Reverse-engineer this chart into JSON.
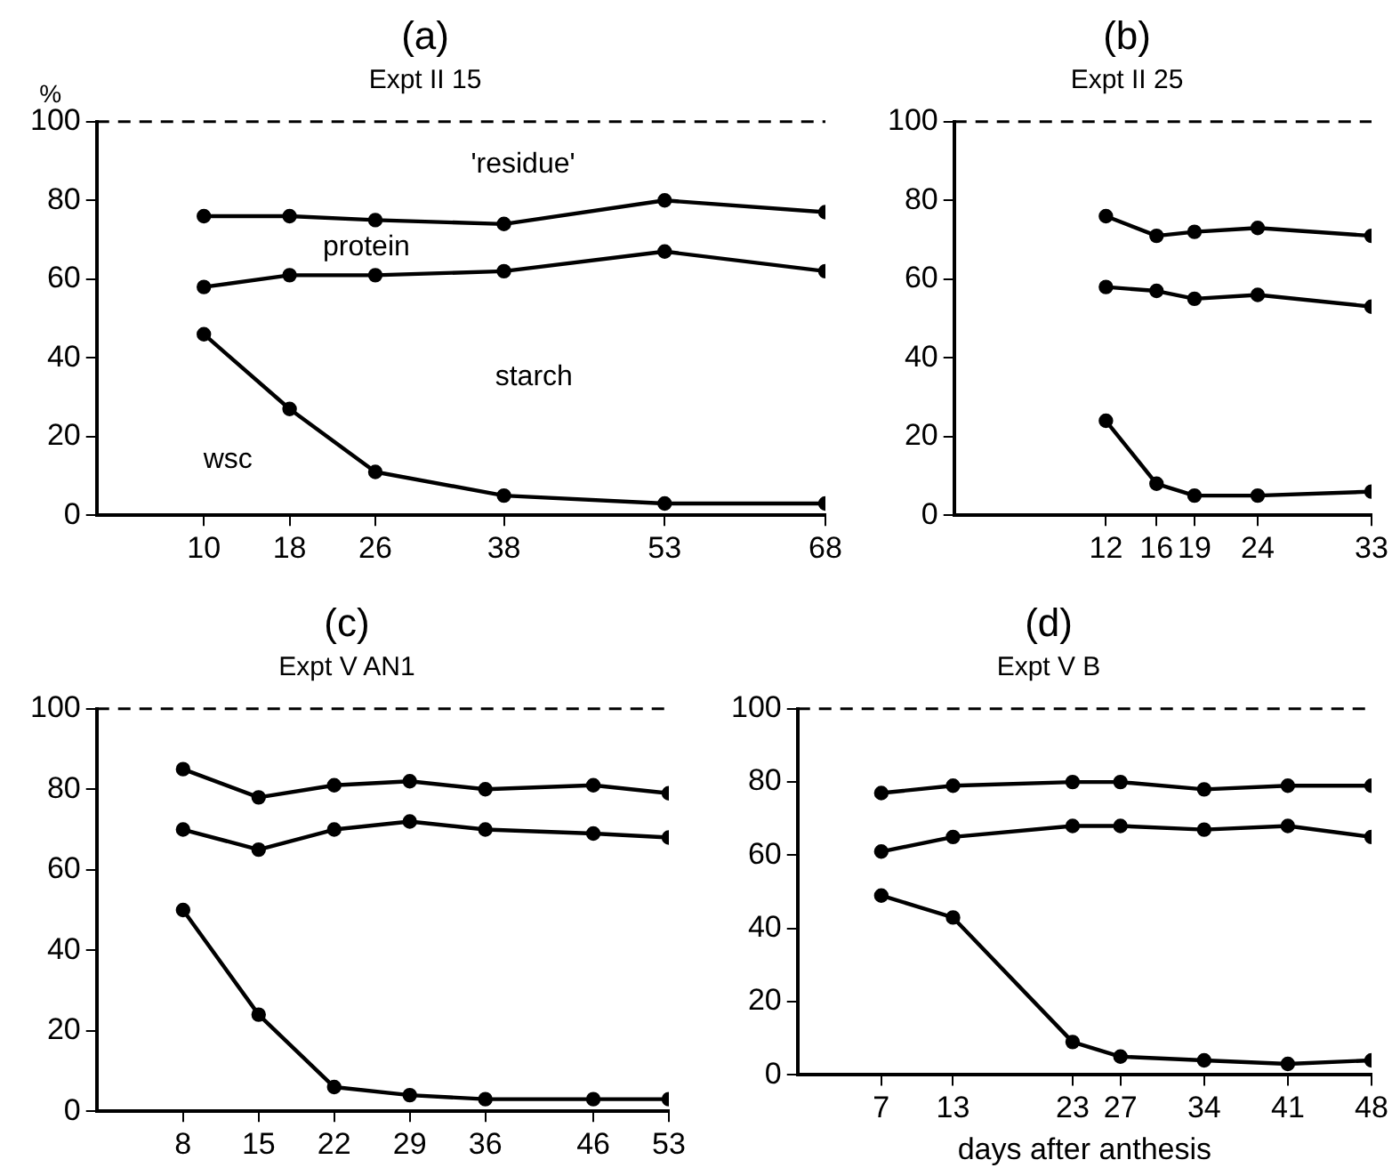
{
  "chart_data": [
    {
      "type": "line",
      "title": "(a)",
      "subtitle": "Expt II 15",
      "ylabel": "%",
      "xlim": [
        0,
        68
      ],
      "xticks": [
        10,
        18,
        26,
        38,
        53,
        68
      ],
      "ylim": [
        0,
        100
      ],
      "yticks": [
        0,
        20,
        40,
        60,
        80,
        100
      ],
      "grid": false,
      "legend": false,
      "marker": "circle",
      "line_style": "solid",
      "ref_lines": [
        {
          "axis": "y",
          "value": 100,
          "line_style": "dashed",
          "color": "#000000"
        }
      ],
      "annotations": [
        "'residue'",
        "protein",
        "starch",
        "wsc"
      ],
      "series": [
        {
          "color": "#000000",
          "x": [
            10,
            18,
            26,
            38,
            53,
            68
          ],
          "values": [
            76,
            76,
            75,
            74,
            80,
            77
          ]
        },
        {
          "color": "#000000",
          "x": [
            10,
            18,
            26,
            38,
            53,
            68
          ],
          "values": [
            58,
            61,
            61,
            62,
            67,
            62
          ]
        },
        {
          "color": "#000000",
          "x": [
            10,
            18,
            26,
            38,
            53,
            68
          ],
          "values": [
            46,
            27,
            11,
            5,
            3,
            3
          ]
        }
      ]
    },
    {
      "type": "line",
      "title": "(b)",
      "subtitle": "Expt II 25",
      "xlim": [
        0,
        33
      ],
      "xticks": [
        12,
        16,
        19,
        24,
        33
      ],
      "ylim": [
        0,
        100
      ],
      "yticks": [
        0,
        20,
        40,
        60,
        80,
        100
      ],
      "grid": false,
      "legend": false,
      "marker": "circle",
      "line_style": "solid",
      "ref_lines": [
        {
          "axis": "y",
          "value": 100,
          "line_style": "dashed",
          "color": "#000000"
        }
      ],
      "series": [
        {
          "color": "#000000",
          "x": [
            12,
            16,
            19,
            24,
            33
          ],
          "values": [
            76,
            71,
            72,
            73,
            71
          ]
        },
        {
          "color": "#000000",
          "x": [
            12,
            16,
            19,
            24,
            33
          ],
          "values": [
            58,
            57,
            55,
            56,
            53
          ]
        },
        {
          "color": "#000000",
          "x": [
            12,
            16,
            19,
            24,
            33
          ],
          "values": [
            24,
            8,
            5,
            5,
            6
          ]
        }
      ]
    },
    {
      "type": "line",
      "title": "(c)",
      "subtitle": "Expt V AN1",
      "xlim": [
        0,
        53
      ],
      "xticks": [
        8,
        15,
        22,
        29,
        36,
        46,
        53
      ],
      "ylim": [
        0,
        100
      ],
      "yticks": [
        0,
        20,
        40,
        60,
        80,
        100
      ],
      "grid": false,
      "legend": false,
      "marker": "circle",
      "line_style": "solid",
      "ref_lines": [
        {
          "axis": "y",
          "value": 100,
          "line_style": "dashed",
          "color": "#000000"
        }
      ],
      "series": [
        {
          "color": "#000000",
          "x": [
            8,
            15,
            22,
            29,
            36,
            46,
            53
          ],
          "values": [
            85,
            78,
            81,
            82,
            80,
            81,
            79
          ]
        },
        {
          "color": "#000000",
          "x": [
            8,
            15,
            22,
            29,
            36,
            46,
            53
          ],
          "values": [
            70,
            65,
            70,
            72,
            70,
            69,
            68
          ]
        },
        {
          "color": "#000000",
          "x": [
            8,
            15,
            22,
            29,
            36,
            46,
            53
          ],
          "values": [
            50,
            24,
            6,
            4,
            3,
            3,
            3
          ]
        }
      ]
    },
    {
      "type": "line",
      "title": "(d)",
      "subtitle": "Expt V B",
      "xlabel": "days after anthesis",
      "xlim": [
        0,
        48
      ],
      "xticks": [
        7,
        13,
        23,
        27,
        34,
        41,
        48
      ],
      "ylim": [
        0,
        100
      ],
      "yticks": [
        0,
        20,
        40,
        60,
        80,
        100
      ],
      "grid": false,
      "legend": false,
      "marker": "circle",
      "line_style": "solid",
      "ref_lines": [
        {
          "axis": "y",
          "value": 100,
          "line_style": "dashed",
          "color": "#000000"
        }
      ],
      "series": [
        {
          "color": "#000000",
          "x": [
            7,
            13,
            23,
            27,
            34,
            41,
            48
          ],
          "values": [
            77,
            79,
            80,
            80,
            78,
            79,
            79
          ]
        },
        {
          "color": "#000000",
          "x": [
            7,
            13,
            23,
            27,
            34,
            41,
            48
          ],
          "values": [
            61,
            65,
            68,
            68,
            67,
            68,
            65
          ]
        },
        {
          "color": "#000000",
          "x": [
            7,
            13,
            23,
            27,
            34,
            41,
            48
          ],
          "values": [
            49,
            43,
            9,
            5,
            4,
            3,
            4
          ]
        }
      ]
    }
  ]
}
